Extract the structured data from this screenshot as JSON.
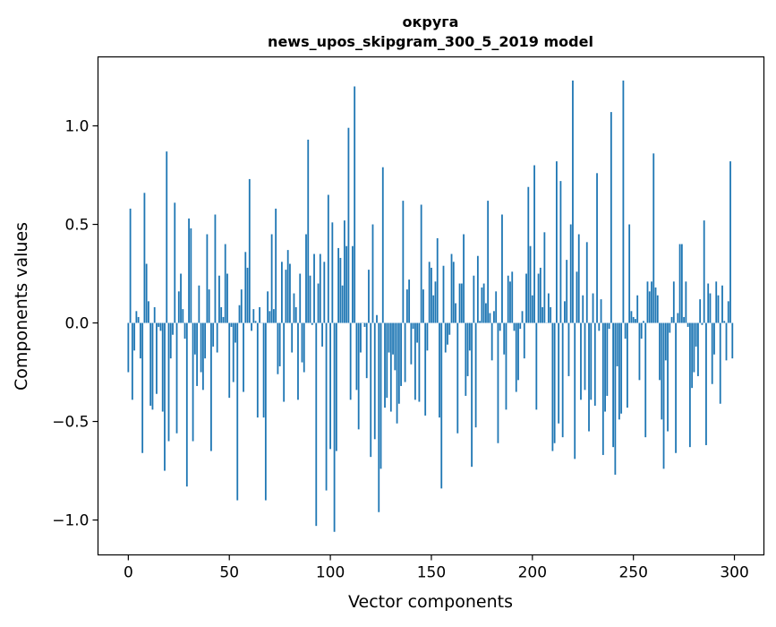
{
  "chart_data": {
    "type": "bar",
    "title_lines": [
      "округа",
      "news_upos_skipgram_300_5_2019 model"
    ],
    "xlabel": "Vector components",
    "ylabel": "Components values",
    "xlim": [
      -15,
      314.6
    ],
    "ylim": [
      -1.177,
      1.35
    ],
    "xticks": [
      0,
      50,
      100,
      150,
      200,
      250,
      300
    ],
    "xtick_labels": [
      "0",
      "50",
      "100",
      "150",
      "200",
      "250",
      "300"
    ],
    "yticks": [
      -1.0,
      -0.5,
      0.0,
      0.5,
      1.0
    ],
    "ytick_labels": [
      "−1.0",
      "−0.5",
      "0.0",
      "0.5",
      "1.0"
    ],
    "grid": false,
    "bar_color": "#1f77b4",
    "values": [
      -0.25,
      0.58,
      -0.39,
      -0.14,
      0.06,
      0.03,
      -0.18,
      -0.66,
      0.66,
      0.3,
      0.11,
      -0.42,
      -0.44,
      0.08,
      -0.36,
      -0.02,
      -0.04,
      -0.45,
      -0.75,
      0.87,
      -0.6,
      -0.18,
      -0.06,
      0.61,
      -0.56,
      0.16,
      0.25,
      0.07,
      -0.08,
      -0.83,
      0.53,
      0.48,
      -0.6,
      -0.16,
      -0.32,
      0.19,
      -0.25,
      -0.34,
      -0.18,
      0.45,
      0.17,
      -0.65,
      -0.12,
      0.55,
      -0.15,
      0.24,
      0.08,
      0.03,
      0.4,
      0.25,
      -0.38,
      -0.02,
      -0.3,
      -0.1,
      -0.9,
      0.09,
      0.17,
      -0.35,
      0.36,
      0.28,
      0.73,
      -0.04,
      0.07,
      0.01,
      -0.48,
      0.08,
      0.0,
      -0.48,
      -0.9,
      0.16,
      0.06,
      0.45,
      0.07,
      0.58,
      -0.26,
      -0.22,
      0.31,
      -0.4,
      0.27,
      0.37,
      0.3,
      -0.15,
      0.15,
      0.08,
      -0.39,
      0.25,
      -0.2,
      -0.25,
      0.45,
      0.93,
      0.24,
      -0.01,
      0.35,
      -1.03,
      0.2,
      0.35,
      -0.12,
      0.31,
      -0.85,
      0.65,
      -0.64,
      0.51,
      -1.06,
      -0.65,
      0.38,
      0.33,
      0.19,
      0.52,
      0.39,
      0.99,
      -0.39,
      0.39,
      1.2,
      -0.34,
      -0.54,
      -0.15,
      0.0,
      -0.02,
      -0.28,
      0.27,
      -0.68,
      0.5,
      -0.59,
      0.04,
      -0.96,
      -0.74,
      0.79,
      -0.43,
      -0.38,
      -0.15,
      -0.45,
      -0.16,
      -0.24,
      -0.51,
      -0.41,
      -0.32,
      0.62,
      -0.3,
      0.17,
      0.22,
      -0.21,
      -0.03,
      -0.39,
      -0.1,
      -0.4,
      0.6,
      0.17,
      -0.47,
      -0.14,
      0.31,
      0.28,
      0.14,
      0.21,
      0.43,
      -0.48,
      -0.84,
      0.29,
      -0.15,
      -0.11,
      -0.06,
      0.35,
      0.31,
      0.1,
      -0.56,
      0.2,
      0.2,
      0.45,
      -0.37,
      -0.27,
      -0.14,
      -0.73,
      0.24,
      -0.53,
      0.34,
      0.01,
      0.18,
      0.2,
      0.1,
      0.62,
      0.05,
      -0.19,
      0.06,
      0.16,
      -0.61,
      -0.04,
      0.55,
      -0.16,
      -0.44,
      0.24,
      0.21,
      0.26,
      -0.04,
      -0.35,
      -0.29,
      -0.03,
      0.06,
      -0.18,
      0.25,
      0.69,
      0.39,
      0.14,
      0.8,
      -0.44,
      0.25,
      0.28,
      0.08,
      0.46,
      0.0,
      0.15,
      0.08,
      -0.65,
      -0.61,
      0.82,
      -0.51,
      0.72,
      -0.58,
      0.11,
      0.32,
      -0.27,
      0.5,
      1.23,
      -0.69,
      0.26,
      0.45,
      -0.39,
      0.14,
      -0.34,
      0.41,
      -0.55,
      -0.39,
      0.15,
      -0.42,
      0.76,
      -0.04,
      0.12,
      -0.67,
      -0.45,
      -0.37,
      -0.03,
      1.07,
      -0.63,
      -0.77,
      -0.22,
      -0.49,
      -0.46,
      1.23,
      -0.08,
      -0.43,
      0.5,
      0.06,
      0.03,
      0.02,
      0.14,
      -0.29,
      -0.08,
      0.01,
      -0.58,
      0.21,
      0.16,
      0.21,
      0.86,
      0.18,
      0.14,
      -0.29,
      -0.49,
      -0.74,
      -0.19,
      -0.55,
      -0.05,
      0.03,
      0.21,
      -0.66,
      0.05,
      0.4,
      0.4,
      0.03,
      0.21,
      -0.02,
      -0.63,
      -0.33,
      -0.25,
      -0.12,
      -0.27,
      0.12,
      -0.01,
      0.52,
      -0.62,
      0.2,
      0.15,
      -0.31,
      -0.16,
      0.21,
      0.14,
      -0.41,
      0.19,
      0.01,
      -0.19,
      0.11,
      0.82,
      -0.18
    ]
  }
}
